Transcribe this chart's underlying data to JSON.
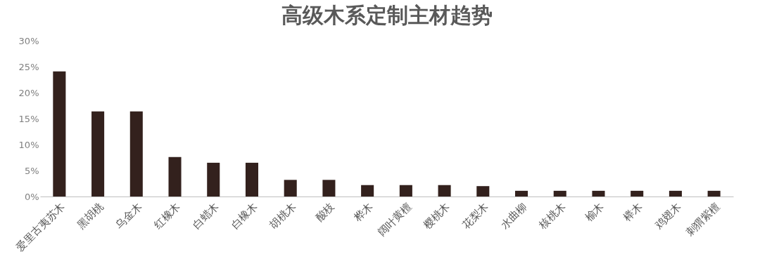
{
  "chart_data": {
    "type": "bar",
    "title": "高级木系定制主材趋势",
    "categories": [
      "爱里古夷苏木",
      "黑胡桃",
      "乌金木",
      "红橡木",
      "白蜡木",
      "白橡木",
      "胡桃木",
      "酸枝",
      "桦木",
      "阔叶黄檀",
      "樱桃木",
      "花梨木",
      "水曲柳",
      "核桃木",
      "榆木",
      "榉木",
      "鸡翅木",
      "刺猬紫檀"
    ],
    "values": [
      24.1,
      16.4,
      16.4,
      7.6,
      6.5,
      6.5,
      3.2,
      3.2,
      2.2,
      2.2,
      2.2,
      2.0,
      1.1,
      1.1,
      1.1,
      1.1,
      1.1,
      1.1
    ],
    "color": "#33211d",
    "ylim": [
      0,
      30
    ],
    "yticks": [
      {
        "value": 0,
        "label": "0%"
      },
      {
        "value": 5,
        "label": "5%"
      },
      {
        "value": 10,
        "label": "10%"
      },
      {
        "value": 15,
        "label": "15%"
      },
      {
        "value": 20,
        "label": "20%"
      },
      {
        "value": 25,
        "label": "25%"
      },
      {
        "value": 30,
        "label": "30%"
      }
    ],
    "grid": false
  }
}
